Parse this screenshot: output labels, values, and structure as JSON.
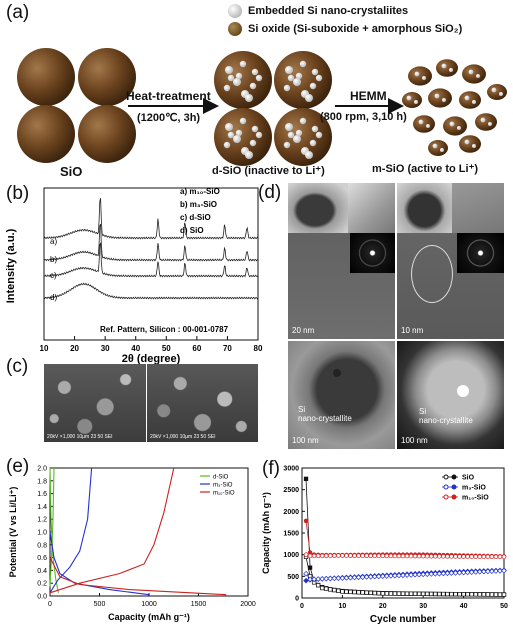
{
  "panel_a": {
    "label": "(a)",
    "legend_embedded": "Embedded Si nano-crystaliites",
    "legend_oxide": "Si oxide (Si-suboxide + amorphous SiO₂)",
    "step1": "Heat-treatment",
    "step1_cond": "(1200℃, 3h)",
    "step2": "HEMM",
    "step2_cond": "(800 rpm, 3,10 h)",
    "label_sio": "SiO",
    "label_dsio": "d-SiO (inactive to Li⁺)",
    "label_msio": "m-SiO (active to Li⁺)"
  },
  "panel_b": {
    "label": "(b)",
    "ylabel": "Intensity (a.u.)",
    "xlabel": "2θ (degree)",
    "ref": "Ref. Pattern, Silicon : 00-001-0787",
    "legend": [
      "a) m₁₀-SiO",
      "b) m₃-SiO",
      "c) d-SiO",
      "d) SiO"
    ],
    "curve_labels": [
      "a)",
      "b)",
      "c)",
      "d)"
    ],
    "xticks": [
      "10",
      "20",
      "30",
      "40",
      "50",
      "60",
      "70",
      "80"
    ]
  },
  "panel_c": {
    "label": "(c)",
    "captions": [
      "20kV  ×1,000  10µm      23 50 SEI",
      "20kV  ×1,000  10µm      23 50 SEI"
    ]
  },
  "panel_d": {
    "label": "(d)",
    "scale_bars": [
      "20 nm",
      "10 nm",
      "100 nm",
      "100 nm"
    ],
    "annot_left": "Si\nnano-crystallite",
    "annot_right": "Si\nnano-crystallite"
  },
  "chart_data": [
    {
      "type": "line",
      "panel": "(e)",
      "xlabel": "Capacity (mAh g⁻¹)",
      "ylabel": "Potential (V vs Li/Li⁺)",
      "xlim": [
        0,
        2000
      ],
      "ylim": [
        0,
        2.0
      ],
      "xticks": [
        0,
        500,
        1000,
        1500,
        2000
      ],
      "yticks": [
        0.0,
        0.2,
        0.4,
        0.6,
        0.8,
        1.0,
        1.2,
        1.4,
        1.6,
        1.8,
        2.0
      ],
      "series": [
        {
          "name": "d-SiO",
          "color": "#55bb22",
          "discharge": [
            [
              0,
              2.0
            ],
            [
              10,
              1.2
            ],
            [
              30,
              0.6
            ],
            [
              60,
              0.25
            ],
            [
              85,
              0.05
            ]
          ],
          "charge": [
            [
              0,
              0.15
            ],
            [
              15,
              0.6
            ],
            [
              30,
              1.2
            ],
            [
              40,
              2.0
            ]
          ]
        },
        {
          "name": "m₃-SiO",
          "color": "#2233cc",
          "discharge": [
            [
              0,
              1.0
            ],
            [
              40,
              0.6
            ],
            [
              100,
              0.35
            ],
            [
              250,
              0.2
            ],
            [
              600,
              0.1
            ],
            [
              1000,
              0.02
            ]
          ],
          "charge": [
            [
              0,
              0.05
            ],
            [
              80,
              0.25
            ],
            [
              200,
              0.45
            ],
            [
              300,
              0.7
            ],
            [
              380,
              1.2
            ],
            [
              420,
              2.0
            ]
          ]
        },
        {
          "name": "m₁₀-SiO",
          "color": "#cc2222",
          "discharge": [
            [
              0,
              0.6
            ],
            [
              100,
              0.3
            ],
            [
              300,
              0.18
            ],
            [
              800,
              0.1
            ],
            [
              1300,
              0.06
            ],
            [
              1780,
              0.02
            ]
          ],
          "charge": [
            [
              0,
              0.05
            ],
            [
              300,
              0.2
            ],
            [
              700,
              0.35
            ],
            [
              950,
              0.5
            ],
            [
              1050,
              0.8
            ],
            [
              1150,
              1.3
            ],
            [
              1250,
              2.0
            ]
          ]
        }
      ]
    },
    {
      "type": "scatter",
      "panel": "(f)",
      "xlabel": "Cycle number",
      "ylabel": "Capacity (mAh g⁻¹)",
      "xlim": [
        0,
        50
      ],
      "ylim": [
        0,
        3000
      ],
      "xticks": [
        0,
        10,
        20,
        30,
        40,
        50
      ],
      "yticks": [
        0,
        500,
        1000,
        1500,
        2000,
        2500,
        3000
      ],
      "series": [
        {
          "name": "SiO",
          "color": "#111111",
          "charge": [
            [
              1,
              2750
            ],
            [
              2,
              700
            ],
            [
              3,
              400
            ],
            [
              4,
              300
            ],
            [
              5,
              250
            ],
            [
              7,
              200
            ],
            [
              10,
              160
            ],
            [
              15,
              130
            ],
            [
              20,
              110
            ],
            [
              30,
              95
            ],
            [
              40,
              85
            ],
            [
              50,
              80
            ]
          ],
          "discharge": [
            [
              1,
              950
            ],
            [
              2,
              500
            ],
            [
              3,
              360
            ],
            [
              5,
              230
            ],
            [
              10,
              150
            ],
            [
              20,
              105
            ],
            [
              50,
              78
            ]
          ]
        },
        {
          "name": "m₃-SiO",
          "color": "#2233cc",
          "charge": [
            [
              1,
              400
            ],
            [
              2,
              420
            ],
            [
              5,
              440
            ],
            [
              10,
              470
            ],
            [
              20,
              520
            ],
            [
              30,
              570
            ],
            [
              40,
              610
            ],
            [
              50,
              640
            ]
          ],
          "discharge": [
            [
              1,
              560
            ],
            [
              2,
              430
            ],
            [
              10,
              460
            ],
            [
              50,
              630
            ]
          ]
        },
        {
          "name": "m₁₀-SiO",
          "color": "#cc2222",
          "charge": [
            [
              1,
              1780
            ],
            [
              2,
              1050
            ],
            [
              3,
              1000
            ],
            [
              5,
              990
            ],
            [
              10,
              990
            ],
            [
              20,
              1000
            ],
            [
              30,
              1000
            ],
            [
              40,
              980
            ],
            [
              50,
              960
            ]
          ],
          "discharge": [
            [
              1,
              1000
            ],
            [
              2,
              970
            ],
            [
              10,
              980
            ],
            [
              50,
              950
            ]
          ]
        }
      ]
    }
  ]
}
